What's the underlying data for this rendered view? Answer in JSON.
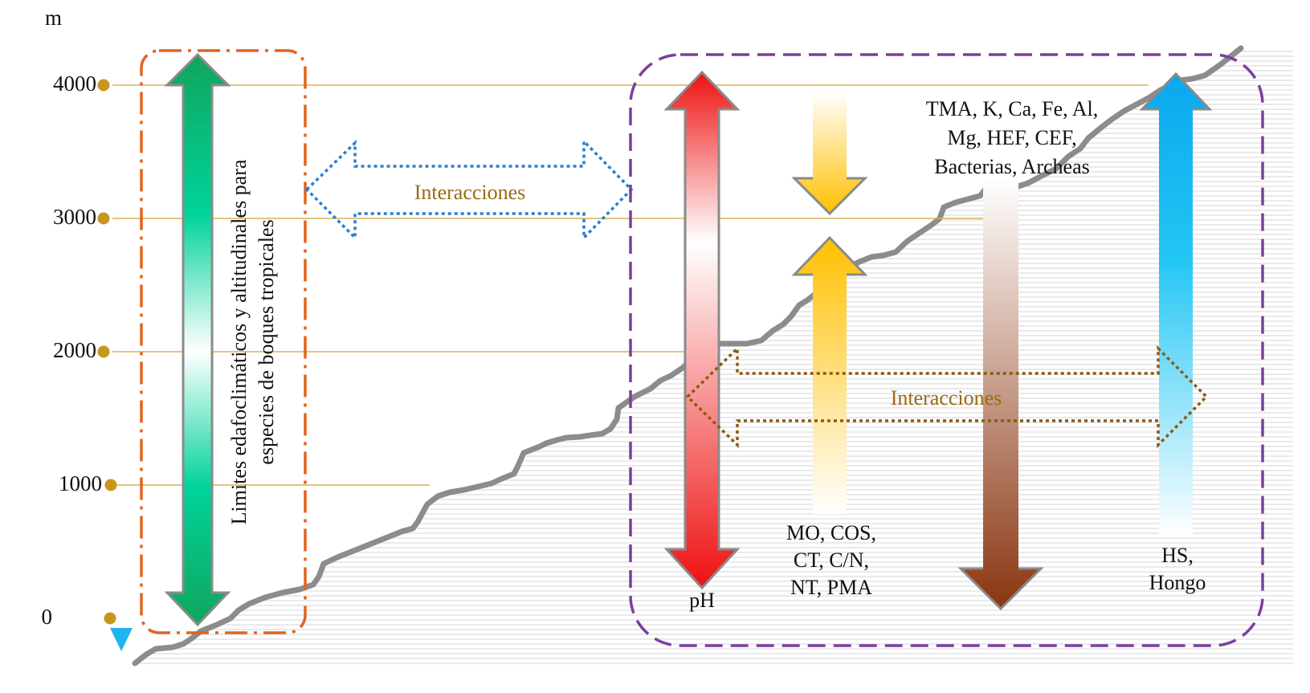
{
  "axis": {
    "unit": "m",
    "ticks": [
      "4000",
      "3000",
      "2000",
      "1000",
      "0"
    ]
  },
  "left_box": {
    "text_line1": "Limites edafoclimáticos  y altitudinales para",
    "text_line2": "especies de boques tropicales"
  },
  "interactions_top": {
    "label": "Interacciones"
  },
  "interactions_bottom": {
    "label": "Interacciones"
  },
  "variables": {
    "ph": {
      "label": "pH"
    },
    "organic": {
      "line1": "MO, COS,",
      "line2": "CT, C/N,",
      "line3": "NT, PMA"
    },
    "minerals": {
      "line1": "TMA, K, Ca, Fe, Al,",
      "line2": "Mg, HEF, CEF,",
      "line3": "Bacterias, Archeas"
    },
    "fungi": {
      "line1": "HS,",
      "line2": "Hongo"
    }
  },
  "colors": {
    "elevation_line": "#8c8c8c",
    "tick_dot": "#c8961e",
    "left_box_border": "#e0641e",
    "right_box_border": "#7a3fa0",
    "top_interaction": "#2a7fd0",
    "bottom_interaction": "#8b5a14",
    "green_arrow": "#1db36a",
    "red_arrow": "#f01e1e",
    "yellow_arrow": "#ffc000",
    "brown_arrow": "#8b3a17",
    "blue_arrow": "#1eb4f0"
  }
}
